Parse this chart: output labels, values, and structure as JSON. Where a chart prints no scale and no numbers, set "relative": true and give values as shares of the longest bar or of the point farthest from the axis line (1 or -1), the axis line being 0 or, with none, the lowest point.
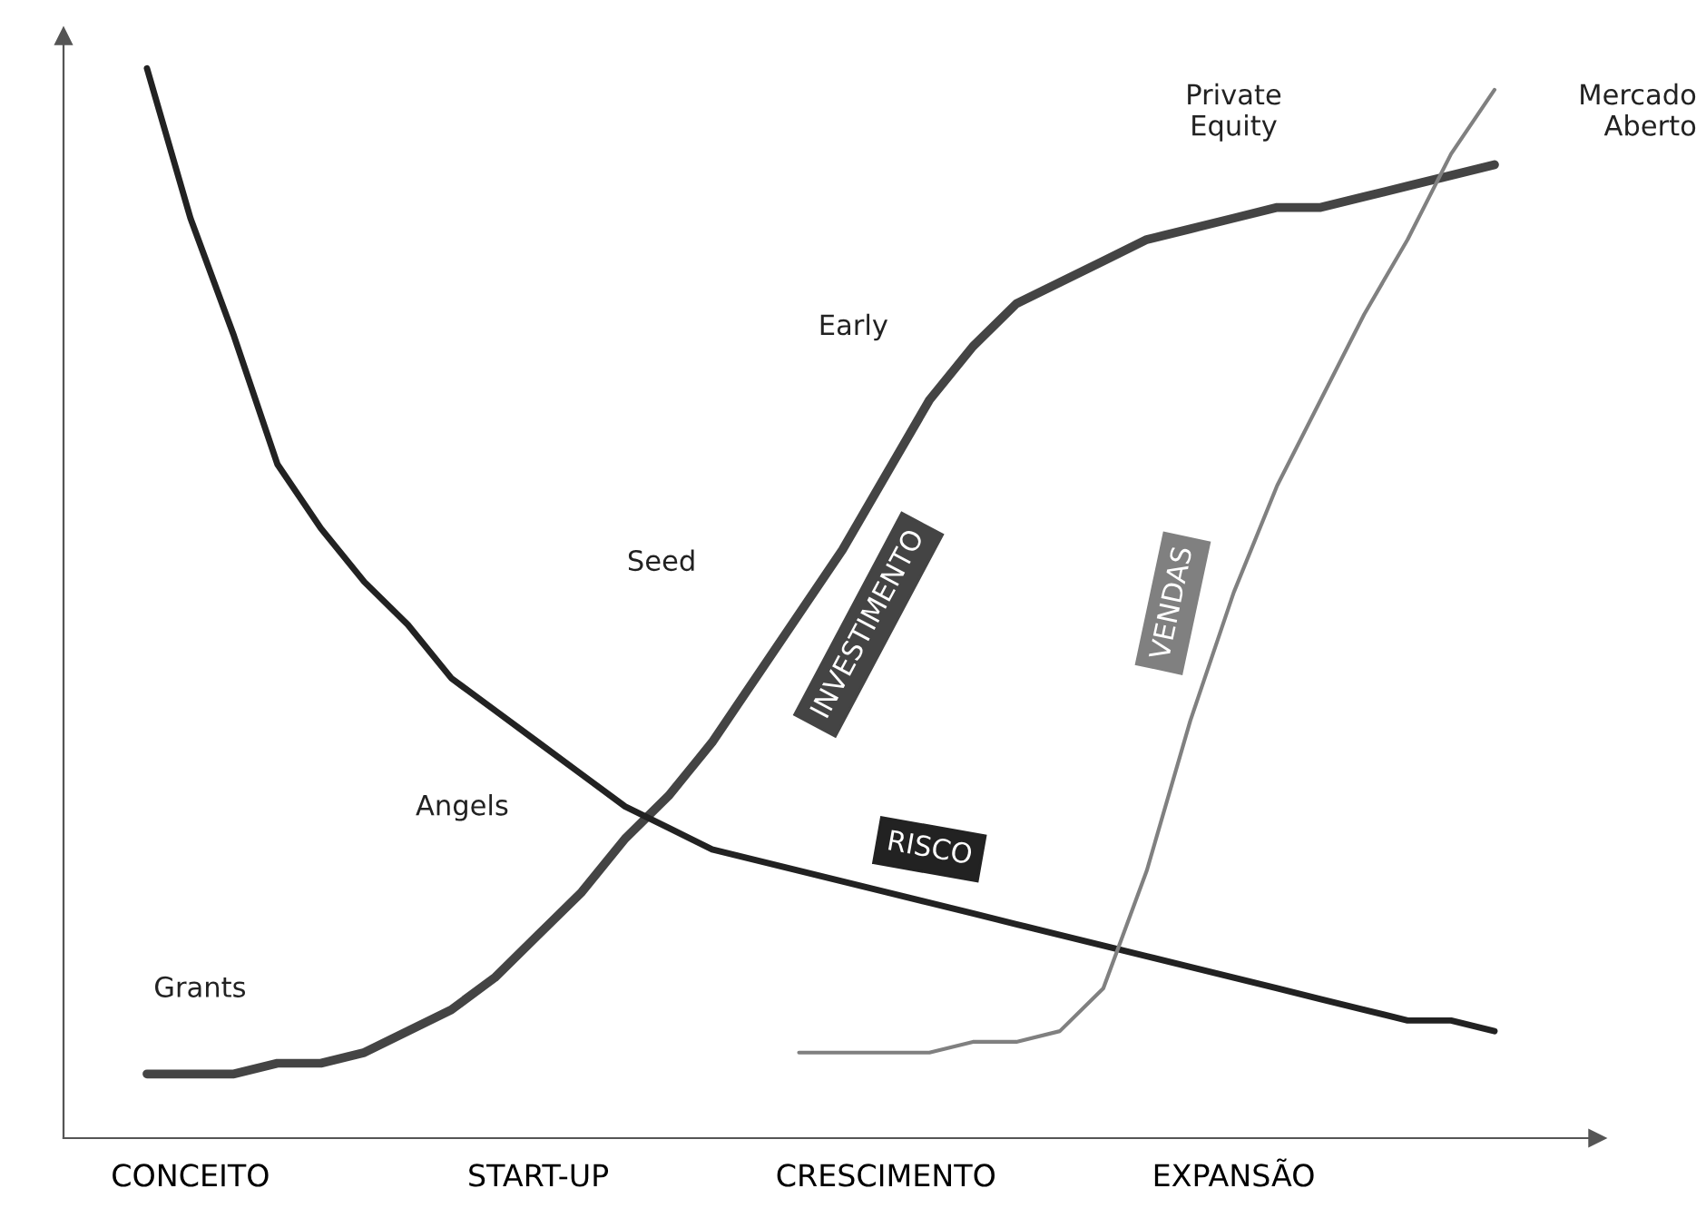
{
  "chart_data": {
    "type": "line",
    "relative": true,
    "categories": [
      null,
      "CONCEITO",
      null,
      null,
      null,
      null,
      null,
      null,
      null,
      "START-UP",
      null,
      null,
      null,
      null,
      null,
      null,
      null,
      "CRESCIMENTO",
      null,
      null,
      null,
      null,
      null,
      null,
      null,
      "EXPANSÃO",
      null,
      null,
      null,
      null,
      null,
      null,
      null
    ],
    "grid": false,
    "legend": false,
    "marker": "none",
    "line_style": "solid",
    "series": [
      {
        "name": "INVESTIMENTO",
        "color": "#444444",
        "values": [
          0.06,
          0.06,
          0.06,
          0.07,
          0.07,
          0.08,
          0.1,
          0.12,
          0.15,
          0.19,
          0.23,
          0.28,
          0.32,
          0.37,
          0.43,
          0.49,
          0.55,
          0.62,
          0.69,
          0.74,
          0.78,
          0.8,
          0.82,
          0.84,
          0.85,
          0.86,
          0.87,
          0.87,
          0.88,
          0.89,
          0.9,
          0.91,
          null
        ]
      },
      {
        "name": "RISCO",
        "color": "#222222",
        "values": [
          1.0,
          0.86,
          0.75,
          0.63,
          0.57,
          0.52,
          0.48,
          0.43,
          0.4,
          0.37,
          0.34,
          0.31,
          0.29,
          0.27,
          0.26,
          0.25,
          0.24,
          0.23,
          0.22,
          0.21,
          0.2,
          0.19,
          0.18,
          0.17,
          0.16,
          0.15,
          0.14,
          0.13,
          0.12,
          0.11,
          0.11,
          0.1,
          null
        ]
      },
      {
        "name": "VENDAS",
        "color": "#808080",
        "values": [
          null,
          null,
          null,
          null,
          null,
          null,
          null,
          null,
          null,
          null,
          null,
          null,
          null,
          null,
          null,
          0.08,
          0.08,
          0.08,
          0.08,
          0.09,
          0.09,
          0.1,
          0.14,
          0.25,
          0.39,
          0.51,
          0.61,
          0.69,
          0.77,
          0.84,
          0.92,
          0.98,
          null
        ]
      }
    ],
    "annotations": [
      "Grants",
      "Angels",
      "Seed",
      "Early",
      "Private\nEquity",
      "Mercado\nAberto"
    ]
  }
}
